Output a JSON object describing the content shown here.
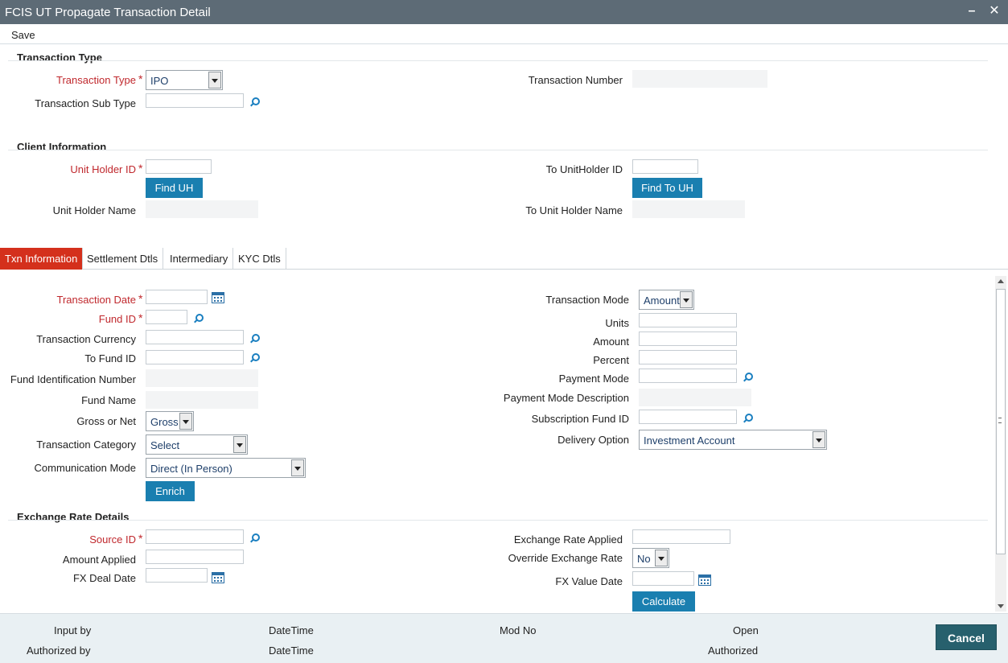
{
  "window": {
    "title": "FCIS UT Propagate Transaction Detail",
    "minimize": "–",
    "close": "✕"
  },
  "toolbar": {
    "save_label": "Save"
  },
  "transaction_type_section": {
    "title": "Transaction Type",
    "transaction_type_label": "Transaction Type",
    "transaction_type_value": "IPO",
    "transaction_sub_type_label": "Transaction Sub Type",
    "transaction_number_label": "Transaction Number"
  },
  "client_section": {
    "title": "Client Information",
    "unit_holder_id_label": "Unit Holder ID",
    "find_uh_label": "Find UH",
    "unit_holder_name_label": "Unit Holder Name",
    "to_unitholder_id_label": "To UnitHolder ID",
    "find_to_uh_label": "Find To UH",
    "to_unit_holder_name_label": "To Unit Holder Name"
  },
  "tabs": [
    {
      "label": "Txn Information",
      "active": true
    },
    {
      "label": "Settlement Dtls",
      "active": false
    },
    {
      "label": "Intermediary",
      "active": false
    },
    {
      "label": "KYC Dtls",
      "active": false
    }
  ],
  "txn": {
    "transaction_date_label": "Transaction Date",
    "fund_id_label": "Fund ID",
    "transaction_currency_label": "Transaction Currency",
    "to_fund_id_label": "To Fund ID",
    "fund_identification_number_label": "Fund Identification Number",
    "fund_name_label": "Fund Name",
    "gross_or_net_label": "Gross or Net",
    "gross_or_net_value": "Gross",
    "transaction_category_label": "Transaction Category",
    "transaction_category_value": "Select",
    "communication_mode_label": "Communication Mode",
    "communication_mode_value": "Direct (In Person)",
    "enrich_label": "Enrich",
    "transaction_mode_label": "Transaction Mode",
    "transaction_mode_value": "Amount",
    "units_label": "Units",
    "amount_label": "Amount",
    "percent_label": "Percent",
    "payment_mode_label": "Payment Mode",
    "payment_mode_description_label": "Payment Mode Description",
    "subscription_fund_id_label": "Subscription Fund ID",
    "delivery_option_label": "Delivery Option",
    "delivery_option_value": "Investment Account"
  },
  "fx": {
    "title": "Exchange Rate Details",
    "source_id_label": "Source ID",
    "amount_applied_label": "Amount Applied",
    "fx_deal_date_label": "FX Deal Date",
    "exchange_rate_applied_label": "Exchange Rate Applied",
    "override_exchange_rate_label": "Override Exchange Rate",
    "override_exchange_rate_value": "No",
    "fx_value_date_label": "FX Value Date",
    "calculate_label": "Calculate"
  },
  "footer": {
    "input_by": "Input by",
    "authorized_by": "Authorized by",
    "datetime_1": "DateTime",
    "datetime_2": "DateTime",
    "mod_no": "Mod No",
    "open": "Open",
    "authorized": "Authorized",
    "cancel_label": "Cancel"
  },
  "required_marker": "*",
  "colors": {
    "title_bar": "#5d6b76",
    "active_tab": "#d4301c",
    "button": "#1a7fb0",
    "required": "#c0282d",
    "cancel_button": "#27606d"
  }
}
